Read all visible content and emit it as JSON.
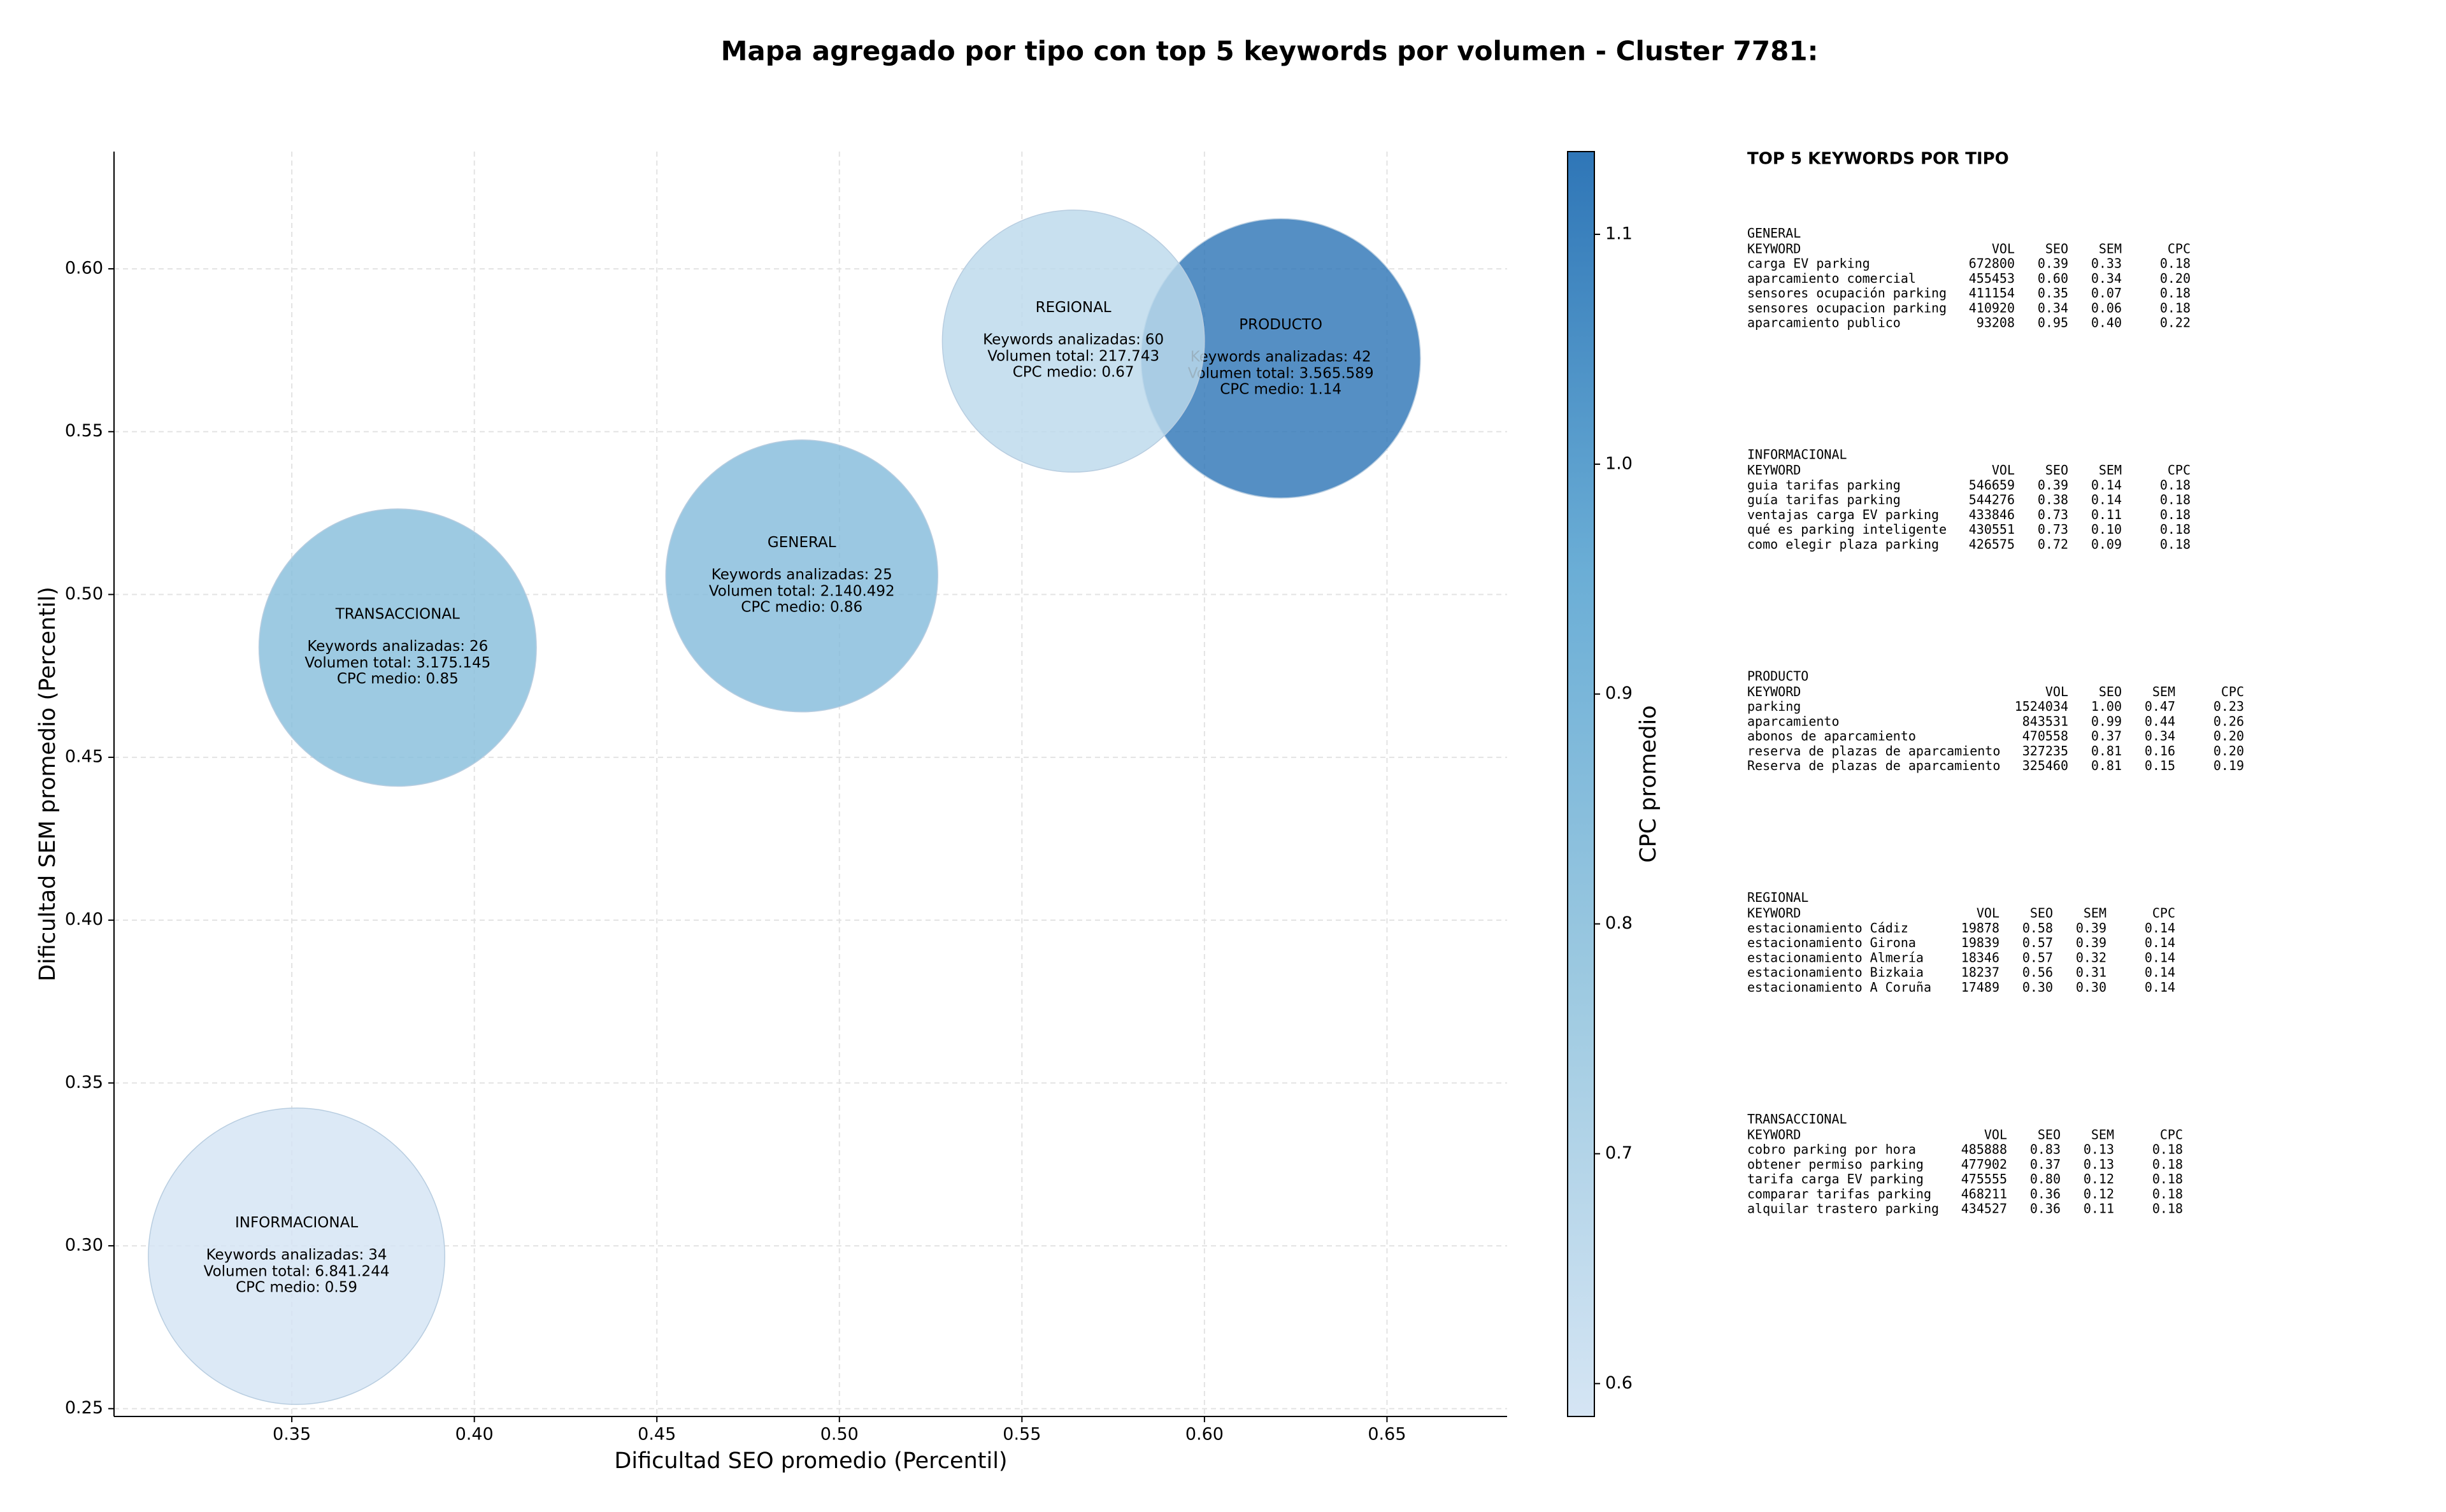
{
  "chart_data": {
    "type": "scatter",
    "title": "Mapa agregado por tipo con top 5 keywords por volumen - Cluster 7781:",
    "xlabel": "Dificultad SEO promedio (Percentil)",
    "ylabel": "Dificultad SEM promedio (Percentil)",
    "xlim": [
      0.3013,
      0.6829
    ],
    "ylim": [
      0.2476,
      0.636
    ],
    "xticks": [
      0.35,
      {
        "value": 0.4,
        "label": "0.40"
      },
      0.45,
      {
        "value": 0.5,
        "label": "0.50"
      },
      0.55,
      {
        "value": 0.6,
        "label": "0.60"
      },
      0.65
    ],
    "yticks": [
      0.25,
      {
        "value": 0.3,
        "label": "0.30"
      },
      0.35,
      {
        "value": 0.4,
        "label": "0.40"
      },
      0.45,
      {
        "value": 0.5,
        "label": "0.50"
      },
      0.55,
      {
        "value": 0.6,
        "label": "0.60"
      }
    ],
    "grid": true,
    "annotation_labels": {
      "keywords": "Keywords analizadas:",
      "volume": "Volumen total:",
      "cpc": "CPC medio:"
    },
    "points": [
      {
        "name": "GENERAL",
        "x": 0.4897,
        "y": 0.5057,
        "keywords": 25,
        "volume": 2140492,
        "volume_label": "2.140.492",
        "cpc": 0.86
      },
      {
        "name": "INFORMACIONAL",
        "x": 0.3513,
        "y": 0.2968,
        "keywords": 34,
        "volume": 6841244,
        "volume_label": "6.841.244",
        "cpc": 0.59
      },
      {
        "name": "PRODUCTO",
        "x": 0.6209,
        "y": 0.5725,
        "keywords": 42,
        "volume": 3565589,
        "volume_label": "3.565.589",
        "cpc": 1.14
      },
      {
        "name": "REGIONAL",
        "x": 0.5641,
        "y": 0.5778,
        "keywords": 60,
        "volume": 217743,
        "volume_label": "217.743",
        "cpc": 0.67
      },
      {
        "name": "TRANSACCIONAL",
        "x": 0.379,
        "y": 0.4837,
        "keywords": 26,
        "volume": 3175145,
        "volume_label": "3.175.145",
        "cpc": 0.85
      }
    ],
    "colorbar": {
      "label": "CPC promedio",
      "lim": [
        0.5857,
        1.136
      ],
      "ticks": [
        0.6,
        0.7,
        0.8,
        0.9,
        {
          "value": 1,
          "label": "1.0"
        },
        1.1
      ],
      "colormap": [
        "#d5e5f4",
        "#9ecae1",
        "#6baed6",
        "#2f76b7"
      ]
    }
  },
  "keyword_panel": {
    "title": "TOP 5 KEYWORDS POR TIPO",
    "columns": [
      "KEYWORD",
      "VOL",
      "SEO",
      "SEM",
      "CPC"
    ],
    "sections": [
      {
        "name": "GENERAL",
        "rows": [
          [
            "carga EV parking",
            "672800",
            "0.39",
            "0.33",
            "0.18"
          ],
          [
            "aparcamiento comercial",
            "455453",
            "0.60",
            "0.34",
            "0.20"
          ],
          [
            "sensores ocupación parking",
            "411154",
            "0.35",
            "0.07",
            "0.18"
          ],
          [
            "sensores ocupacion parking",
            "410920",
            "0.34",
            "0.06",
            "0.18"
          ],
          [
            "aparcamiento publico",
            "93208",
            "0.95",
            "0.40",
            "0.22"
          ]
        ]
      },
      {
        "name": "INFORMACIONAL",
        "rows": [
          [
            "guia tarifas parking",
            "546659",
            "0.39",
            "0.14",
            "0.18"
          ],
          [
            "guía tarifas parking",
            "544276",
            "0.38",
            "0.14",
            "0.18"
          ],
          [
            "ventajas carga EV parking",
            "433846",
            "0.73",
            "0.11",
            "0.18"
          ],
          [
            "qué es parking inteligente",
            "430551",
            "0.73",
            "0.10",
            "0.18"
          ],
          [
            "como elegir plaza parking",
            "426575",
            "0.72",
            "0.09",
            "0.18"
          ]
        ]
      },
      {
        "name": "PRODUCTO",
        "rows": [
          [
            "parking",
            "1524034",
            "1.00",
            "0.47",
            "0.23"
          ],
          [
            "aparcamiento",
            "843531",
            "0.99",
            "0.44",
            "0.26"
          ],
          [
            "abonos de aparcamiento",
            "470558",
            "0.37",
            "0.34",
            "0.20"
          ],
          [
            "reserva de plazas de aparcamiento",
            "327235",
            "0.81",
            "0.16",
            "0.20"
          ],
          [
            "Reserva de plazas de aparcamiento",
            "325460",
            "0.81",
            "0.15",
            "0.19"
          ]
        ]
      },
      {
        "name": "REGIONAL",
        "rows": [
          [
            "estacionamiento Cádiz",
            "19878",
            "0.58",
            "0.39",
            "0.14"
          ],
          [
            "estacionamiento Girona",
            "19839",
            "0.57",
            "0.39",
            "0.14"
          ],
          [
            "estacionamiento Almería",
            "18346",
            "0.57",
            "0.32",
            "0.14"
          ],
          [
            "estacionamiento Bizkaia",
            "18237",
            "0.56",
            "0.31",
            "0.14"
          ],
          [
            "estacionamiento A Coruña",
            "17489",
            "0.30",
            "0.30",
            "0.14"
          ]
        ]
      },
      {
        "name": "TRANSACCIONAL",
        "rows": [
          [
            "cobro parking por hora",
            "485888",
            "0.83",
            "0.13",
            "0.18"
          ],
          [
            "obtener permiso parking",
            "477902",
            "0.37",
            "0.13",
            "0.18"
          ],
          [
            "tarifa carga EV parking",
            "475555",
            "0.80",
            "0.12",
            "0.18"
          ],
          [
            "comparar tarifas parking",
            "468211",
            "0.36",
            "0.12",
            "0.18"
          ],
          [
            "alquilar trastero parking",
            "434527",
            "0.36",
            "0.11",
            "0.18"
          ]
        ]
      }
    ]
  }
}
